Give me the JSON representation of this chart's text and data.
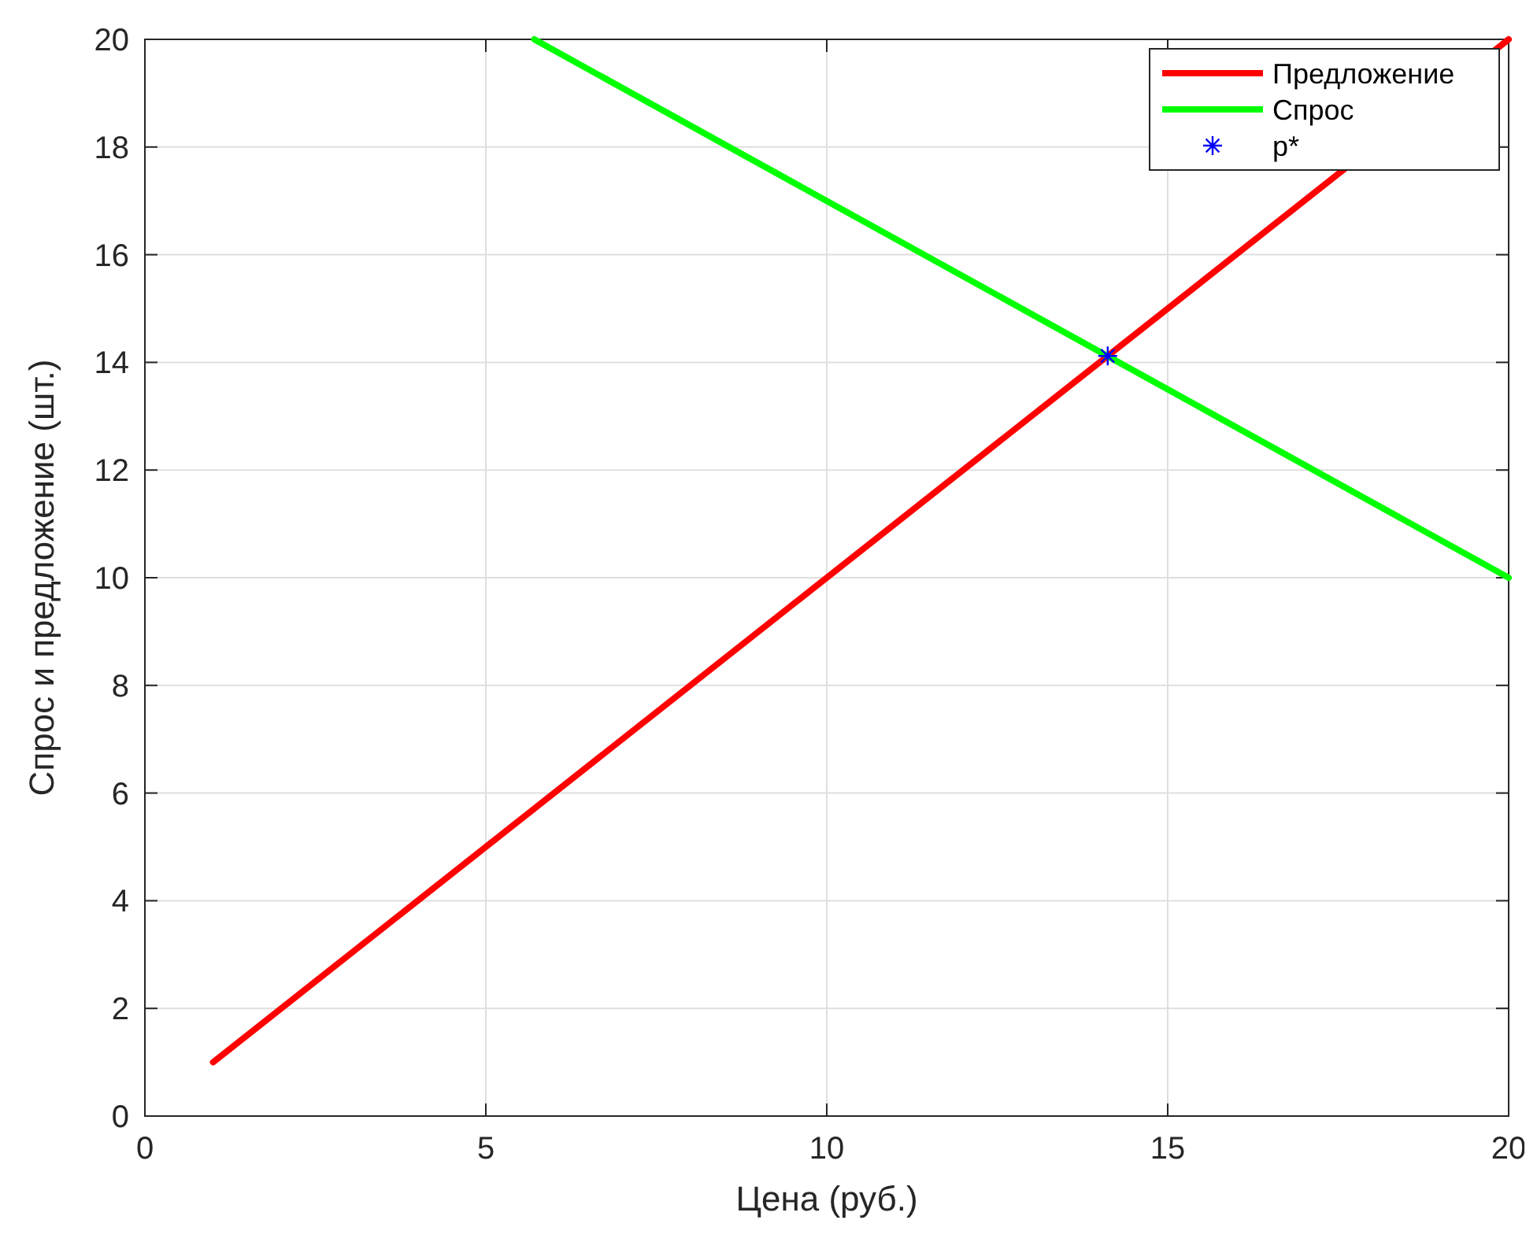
{
  "chart_data": {
    "type": "line",
    "xlabel": "Цена (руб.)",
    "ylabel": "Спрос и предложение (шт.)",
    "xlim": [
      0,
      20
    ],
    "xticks": [
      0,
      5,
      10,
      15,
      20
    ],
    "ylim": [
      0,
      20
    ],
    "yticks": [
      0,
      2,
      4,
      6,
      8,
      10,
      12,
      14,
      16,
      18,
      20
    ],
    "grid": true,
    "legend": "top right",
    "series": [
      {
        "name": "Предложение",
        "color": "#ff0000",
        "marker": "none",
        "x": [
          1,
          20
        ],
        "values": [
          1,
          20
        ]
      },
      {
        "name": "Спрос",
        "color": "#00ff00",
        "marker": "none",
        "x": [
          5.71,
          20
        ],
        "values": [
          20,
          10
        ]
      },
      {
        "name": "p*",
        "type": "scatter",
        "color": "#0000ff",
        "marker": "cross",
        "x": [
          14.12
        ],
        "values": [
          14.12
        ]
      }
    ]
  }
}
